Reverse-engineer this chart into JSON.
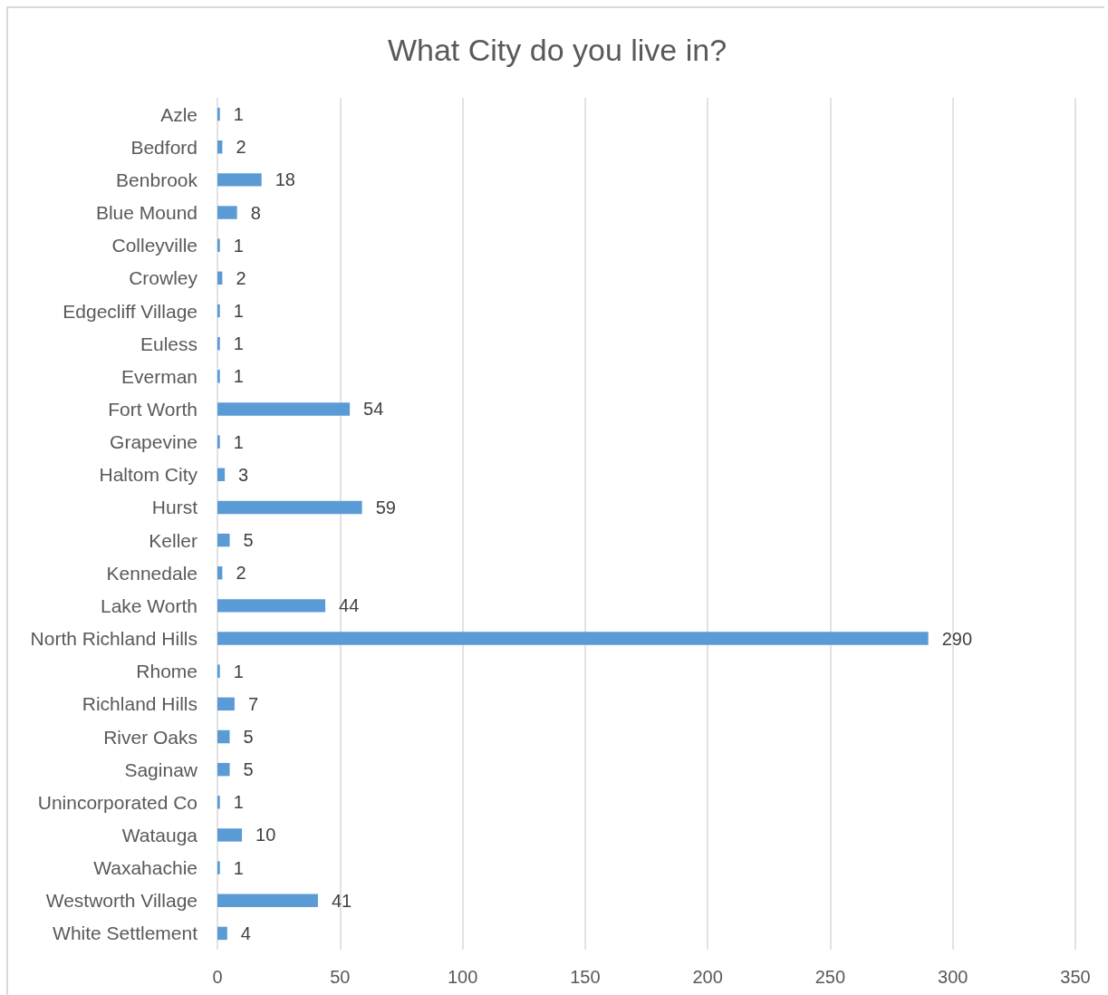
{
  "chart_data": {
    "type": "bar",
    "orientation": "horizontal",
    "title": "What City do you live in?",
    "categories": [
      "Azle",
      "Bedford",
      "Benbrook",
      "Blue Mound",
      "Colleyville",
      "Crowley",
      "Edgecliff Village",
      "Euless",
      "Everman",
      "Fort Worth",
      "Grapevine",
      "Haltom City",
      "Hurst",
      "Keller",
      "Kennedale",
      "Lake Worth",
      "North Richland Hills",
      "Rhome",
      "Richland Hills",
      "River Oaks",
      "Saginaw",
      "Unincorporated Co",
      "Watauga",
      "Waxahachie",
      "Westworth Village",
      "White Settlement"
    ],
    "values": [
      1,
      2,
      18,
      8,
      1,
      2,
      1,
      1,
      1,
      54,
      1,
      3,
      59,
      5,
      2,
      44,
      290,
      1,
      7,
      5,
      5,
      1,
      10,
      1,
      41,
      4
    ],
    "color": "#5b9bd5",
    "xlim": [
      0,
      350
    ],
    "xticks": [
      0,
      50,
      100,
      150,
      200,
      250,
      300,
      350
    ],
    "grid": "x",
    "data_labels": true
  }
}
